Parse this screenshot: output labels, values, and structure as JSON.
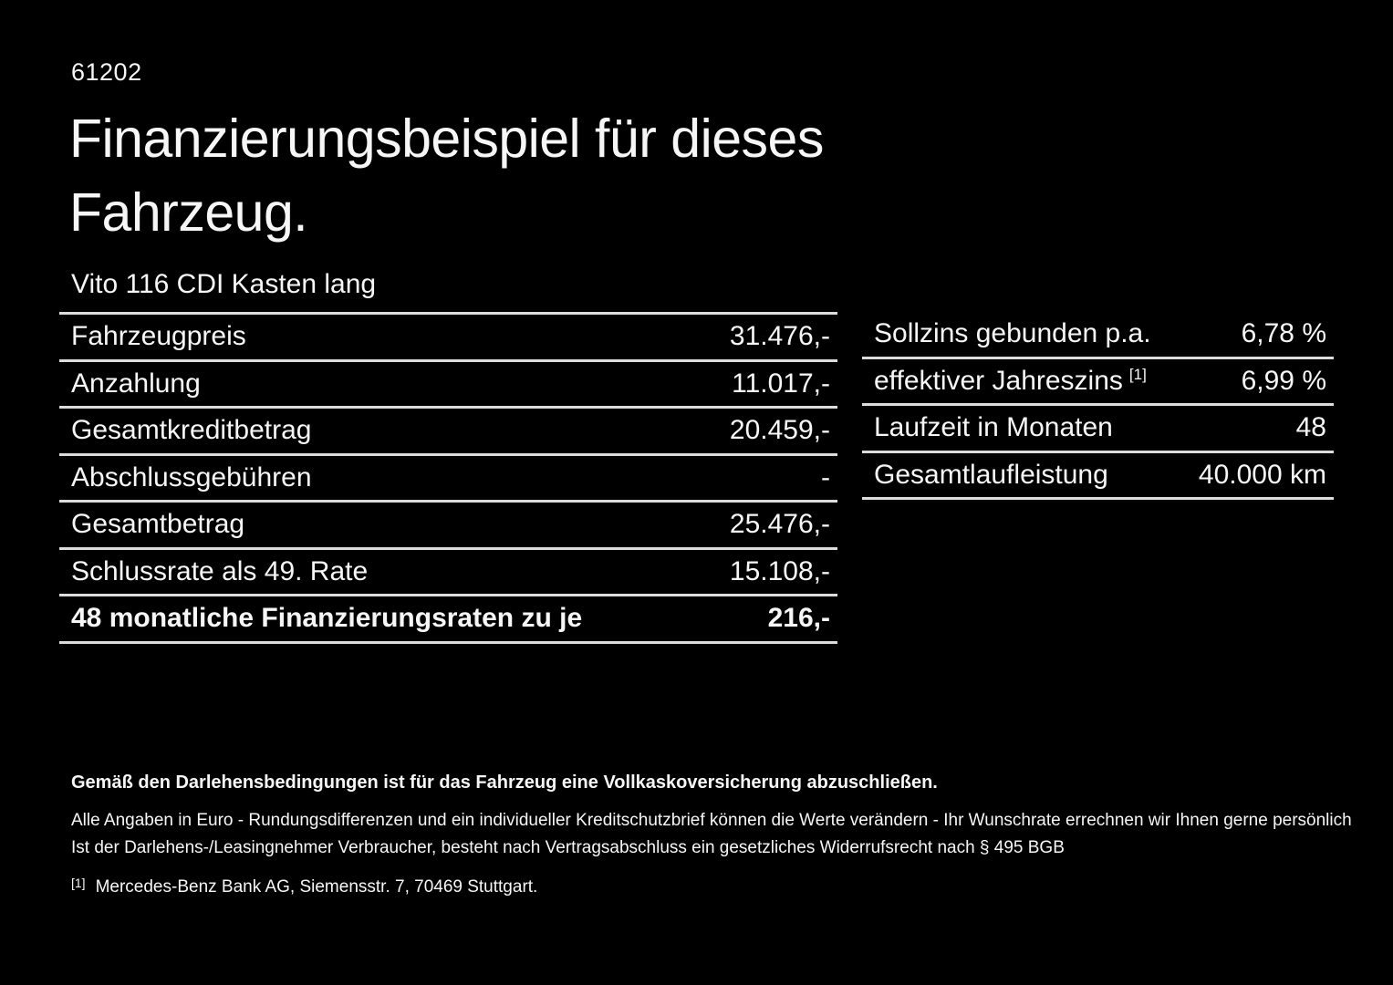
{
  "page": {
    "background_color": "#000000",
    "text_color": "#f6f6f6",
    "divider_color": "#dcdcdc"
  },
  "doc_number": "61202",
  "heading": {
    "line1": "Finanzierungsbeispiel für dieses",
    "line2": "Fahrzeug."
  },
  "vehicle_title": "Vito 116 CDI Kasten lang",
  "finance_table": {
    "rows": [
      {
        "label": "Fahrzeugpreis",
        "value": "31.476,-"
      },
      {
        "label": "Anzahlung",
        "value": "11.017,-"
      },
      {
        "label": "Gesamtkreditbetrag",
        "value": "20.459,-"
      },
      {
        "label": "Abschlussgebühren",
        "value": "-"
      },
      {
        "label": "Gesamtbetrag",
        "value": "25.476,-"
      },
      {
        "label": "Schlussrate als 49. Rate",
        "value": "15.108,-"
      },
      {
        "label": "48 monatliche Finanzierungsraten zu je",
        "value": "216,-",
        "emphasis": true
      }
    ]
  },
  "conditions_table": {
    "rows": [
      {
        "label": "Sollzins gebunden p.a.",
        "value": "6,78 %"
      },
      {
        "label": "effektiver Jahreszins",
        "footnote_marker": "[1]",
        "value": "6,99 %"
      },
      {
        "label": "Laufzeit in Monaten",
        "value": "48"
      },
      {
        "label": "Gesamtlaufleistung",
        "value": "40.000 km"
      }
    ]
  },
  "footer": {
    "bold_note": "Gemäß den Darlehensbedingungen ist für das Fahrzeug eine Vollkaskoversicherung abzuschließen.",
    "note_line1": "Alle Angaben in Euro - Rundungsdifferenzen und ein individueller Kreditschutzbrief können die Werte verändern - Ihr Wunschrate errechnen wir Ihnen gerne persönlich",
    "note_line2": "Ist der Darlehens-/Leasingnehmer Verbraucher, besteht nach Vertragsabschluss ein gesetzliches Widerrufsrecht nach § 495 BGB",
    "footnote_marker": "[1]",
    "footnote_text": "Mercedes-Benz Bank AG, Siemensstr. 7, 70469 Stuttgart."
  }
}
